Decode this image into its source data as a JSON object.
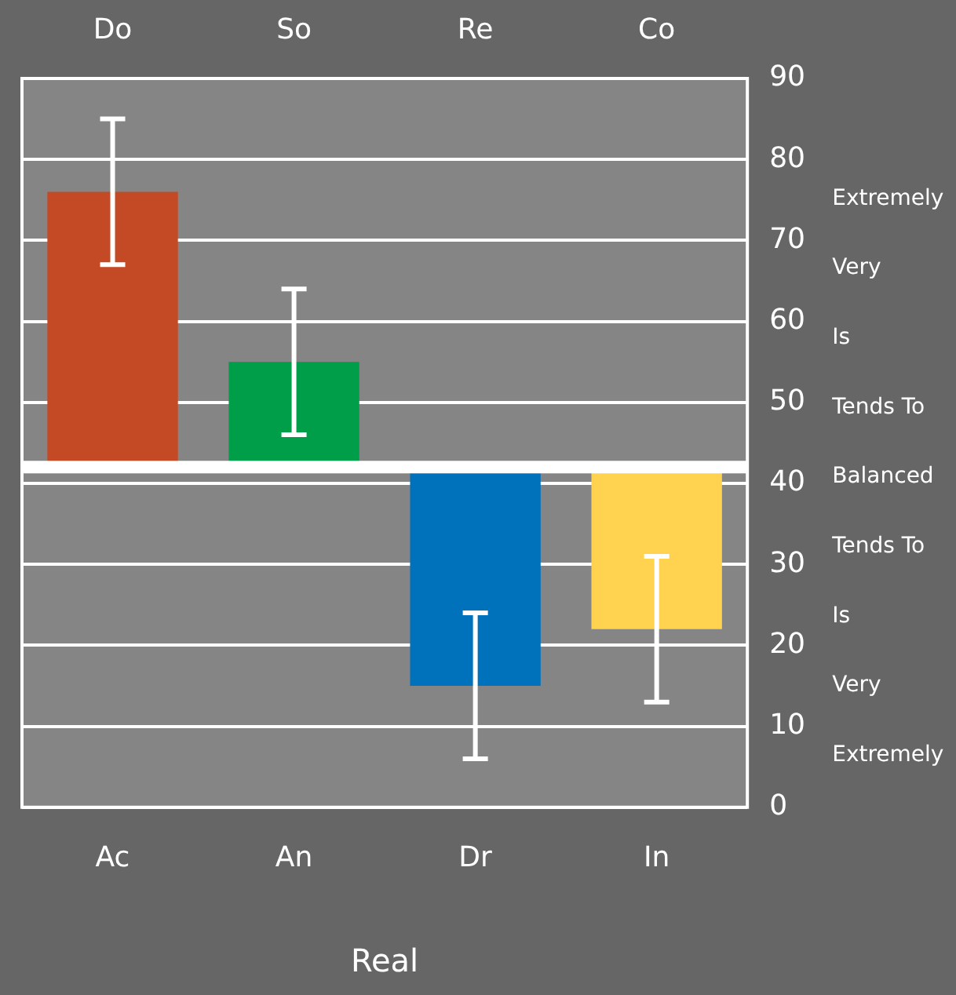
{
  "chart_data": {
    "type": "bar",
    "categories": [
      "Ac",
      "An",
      "Dr",
      "In"
    ],
    "base": [
      42,
      42,
      42,
      42
    ],
    "values": [
      34,
      13,
      -27,
      -20
    ],
    "colors": [
      "#c44a25",
      "#009e49",
      "#0072bb",
      "#ffd24f"
    ],
    "errors": [
      9,
      9,
      9,
      9
    ],
    "xlabel": "Real",
    "annotations": [
      "Do",
      "So",
      "Re",
      "Co",
      "Extremely",
      "Very",
      "Is",
      "Tends To",
      "Balanced",
      "Tends To",
      "Is",
      "Very",
      "Extremely"
    ],
    "ylim": [
      0,
      90
    ],
    "yticks": [
      0,
      10,
      20,
      30,
      40,
      50,
      60,
      70,
      80,
      90
    ],
    "ref_lines": [
      {
        "axis": "y",
        "value": 42,
        "color": "#ffffff"
      }
    ],
    "grid": "y",
    "legend": false
  }
}
